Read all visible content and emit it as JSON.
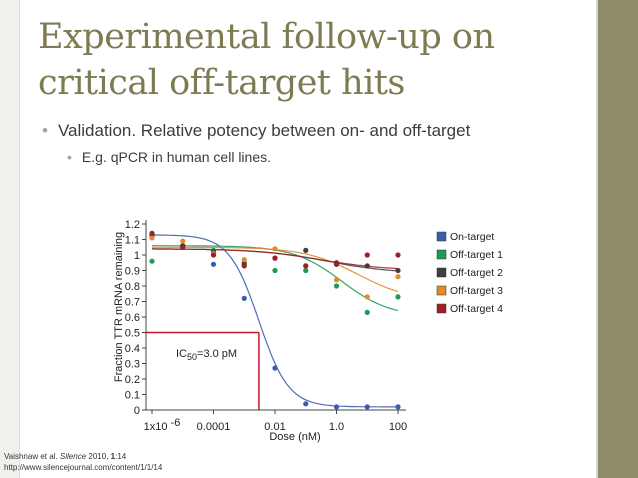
{
  "slide": {
    "title_line1": "Experimental follow-up on",
    "title_line2": "critical off-target hits",
    "bullet1": "Validation. Relative potency between on- and off-target",
    "bullet2": "E.g. qPCR in human cell lines.",
    "bullet_glyph": "•",
    "citation_author": "Vaishnaw et al.",
    "citation_journal": "Silence",
    "citation_year": "2010,",
    "citation_volume": "1",
    "citation_rest": ":14",
    "citation_url": "http://www.silencejournal.com/content/1/1/14"
  },
  "theme": {
    "title_color": "#7e7b53",
    "sidebar_color": "#8e8c6a",
    "red_line": "#c0152a"
  },
  "chart_data": {
    "type": "scatter",
    "xlabel": "Dose (nM)",
    "ylabel": "Fraction TTR mRNA remaining",
    "x_scale": "log10",
    "xlim": [
      1e-06,
      100
    ],
    "ylim": [
      0,
      1.2
    ],
    "x_ticks": [
      {
        "x": 1e-06,
        "base": "1x10",
        "exp": "-6"
      },
      {
        "x": 0.0001,
        "label": "0.0001"
      },
      {
        "x": 0.01,
        "label": "0.01"
      },
      {
        "x": 1,
        "label": "1.0"
      },
      {
        "x": 100,
        "label": "100"
      }
    ],
    "y_ticks": [
      {
        "y": 0,
        "label": "0"
      },
      {
        "y": 0.1,
        "label": "0.1"
      },
      {
        "y": 0.2,
        "label": "0.2"
      },
      {
        "y": 0.3,
        "label": "0.3"
      },
      {
        "y": 0.4,
        "label": "0.4"
      },
      {
        "y": 0.5,
        "label": "0.5"
      },
      {
        "y": 0.6,
        "label": "0.6"
      },
      {
        "y": 0.7,
        "label": "0.7"
      },
      {
        "y": 0.8,
        "label": "0.8"
      },
      {
        "y": 0.9,
        "label": "0.9"
      },
      {
        "y": 1,
        "label": "1"
      },
      {
        "y": 1.1,
        "label": "1.1"
      },
      {
        "y": 1.2,
        "label": "1.2"
      }
    ],
    "annotation": {
      "prefix": "IC",
      "sub": "50",
      "suffix": "=3.0 pM"
    },
    "ic50_x": 0.003,
    "ic50_y": 0.5,
    "legend_position": "right",
    "series": [
      {
        "name": "On-target",
        "color": "#3b5eab",
        "x": [
          1e-06,
          1e-05,
          0.0001,
          0.001,
          0.01,
          0.1,
          1,
          10,
          100
        ],
        "y": [
          1.12,
          1.05,
          0.94,
          0.72,
          0.27,
          0.04,
          0.02,
          0.02,
          0.02
        ],
        "fit": {
          "top": 1.13,
          "bottom": 0.02,
          "ic50": 0.003,
          "hill": 0.9
        }
      },
      {
        "name": "Off-target 1",
        "color": "#1e9a52",
        "x": [
          1e-06,
          1e-05,
          0.0001,
          0.001,
          0.01,
          0.1,
          1,
          10,
          100
        ],
        "y": [
          0.96,
          1.06,
          1.03,
          0.95,
          0.9,
          0.9,
          0.8,
          0.63,
          0.73
        ],
        "fit": {
          "top": 1.06,
          "bottom": 0.6,
          "ic50": 1.5,
          "hill": 0.55
        }
      },
      {
        "name": "Off-target 2",
        "color": "#3f3f3f",
        "x": [
          1e-06,
          1e-05,
          0.0001,
          0.001,
          0.01,
          0.1,
          1,
          10,
          100
        ],
        "y": [
          1.13,
          1.06,
          1.02,
          0.94,
          0.98,
          1.03,
          0.94,
          0.93,
          0.9
        ],
        "fit": {
          "top": 1.04,
          "bottom": 0.88,
          "ic50": 0.5,
          "hill": 0.4
        }
      },
      {
        "name": "Off-target 3",
        "color": "#e38a2a",
        "x": [
          1e-06,
          1e-05,
          0.0001,
          0.001,
          0.01,
          0.1,
          1,
          10,
          100
        ],
        "y": [
          1.11,
          1.09,
          1.01,
          0.97,
          1.04,
          0.93,
          0.84,
          0.73,
          0.86
        ],
        "fit": {
          "top": 1.05,
          "bottom": 0.7,
          "ic50": 5,
          "hill": 0.5
        }
      },
      {
        "name": "Off-target 4",
        "color": "#9e1f24",
        "x": [
          1e-06,
          1e-05,
          0.0001,
          0.001,
          0.01,
          0.1,
          1,
          10,
          100
        ],
        "y": [
          1.14,
          1.05,
          1.0,
          0.93,
          0.98,
          0.93,
          0.95,
          1.0,
          1.0
        ],
        "fit": {
          "top": 1.04,
          "bottom": 0.9,
          "ic50": 0.3,
          "hill": 0.4
        }
      }
    ]
  }
}
